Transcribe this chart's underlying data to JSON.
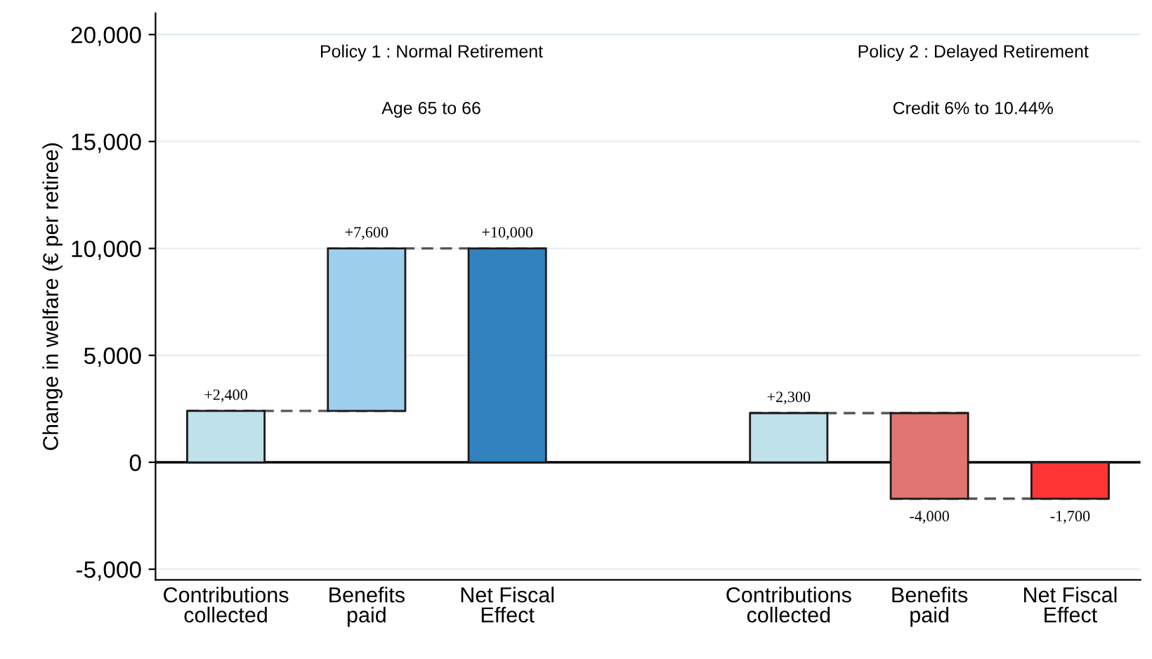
{
  "chart_data": {
    "type": "bar",
    "ylabel": "Change in welfare (€ per retiree)",
    "categories": [
      "Contributions\ncollected",
      "Benefits\npaid",
      "Net Fiscal\nEffect",
      null,
      "Contributions\ncollected",
      "Benefits\npaid",
      "Net Fiscal\nEffect"
    ],
    "values": [
      2400,
      7600,
      10000,
      null,
      2300,
      -4000,
      -1700
    ],
    "base": [
      0,
      2400,
      0,
      null,
      0,
      2300,
      0
    ],
    "colors": [
      "#bfe1e9",
      "#9ecfec",
      "#3182bd",
      null,
      "#bfe1e9",
      "#e07571",
      "#ff3535"
    ],
    "value_labels": [
      "+2,400",
      "+7,600",
      "+10,000",
      null,
      "+2,300",
      "-4,000",
      "-1,700"
    ],
    "annotations": [
      "Policy 1 : Normal Retirement",
      "Age 65 to 66",
      "Policy 2 : Delayed Retirement",
      "Credit 6% to 10.44%"
    ],
    "ylim": [
      -5500,
      21000
    ],
    "yticks": [
      {
        "value": -5000,
        "label": "-5,000"
      },
      {
        "value": 0,
        "label": "0"
      },
      {
        "value": 5000,
        "label": "5,000"
      },
      {
        "value": 10000,
        "label": "10,000"
      },
      {
        "value": 15000,
        "label": "15,000"
      },
      {
        "value": 20000,
        "label": "20,000"
      }
    ],
    "ref_lines": [
      {
        "axis": "y",
        "value": 0,
        "label": null,
        "color": "#000000"
      }
    ],
    "grid": "y",
    "legend": false
  }
}
